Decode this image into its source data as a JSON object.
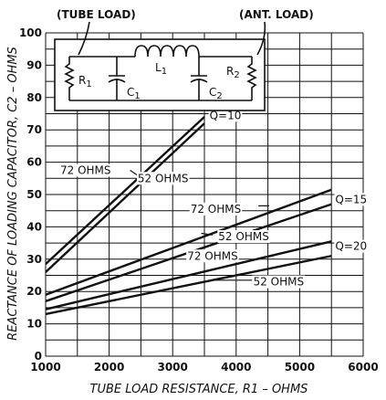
{
  "chart_data": {
    "type": "line",
    "xlabel": "TUBE LOAD RESISTANCE, R1 – OHMS",
    "ylabel": "REACTANCE OF LOADING CAPACITOR, C2 – OHMS",
    "xlim": [
      1000,
      6000
    ],
    "ylim": [
      0,
      100
    ],
    "xticks": [
      1000,
      2000,
      3000,
      4000,
      5000,
      6000
    ],
    "yticks": [
      0,
      10,
      20,
      30,
      40,
      50,
      60,
      70,
      80,
      90,
      100
    ],
    "grid": true,
    "series": [
      {
        "name": "72 OHMS",
        "x": [
          1000,
          3500
        ],
        "y": [
          28.5,
          74
        ]
      },
      {
        "name": "52 OHMS",
        "x": [
          1000,
          3500
        ],
        "y": [
          26,
          72
        ]
      },
      {
        "name": "72 OHMS",
        "x": [
          1000,
          5500
        ],
        "y": [
          19,
          51.5
        ]
      },
      {
        "name": "52 OHMS",
        "x": [
          1000,
          5500
        ],
        "y": [
          17,
          47
        ]
      },
      {
        "name": "72 OHMS",
        "x": [
          1000,
          5500
        ],
        "y": [
          14.5,
          35.5
        ]
      },
      {
        "name": "52 OHMS",
        "x": [
          1000,
          5500
        ],
        "y": [
          13,
          31
        ]
      }
    ],
    "annotations": [
      {
        "text": "Q=10",
        "x": 3580,
        "y": 74.5
      },
      {
        "text": "Q=15",
        "x": 5560,
        "y": 48.5
      },
      {
        "text": "Q=20",
        "x": 5560,
        "y": 34
      },
      {
        "text": "72 OHMS",
        "x": 1230,
        "y": 57.5
      },
      {
        "text": "52 OHMS",
        "x": 2450,
        "y": 55
      },
      {
        "text": "72 OHMS",
        "x": 3280,
        "y": 45.5
      },
      {
        "text": "52 OHMS",
        "x": 3720,
        "y": 37
      },
      {
        "text": "72 OHMS",
        "x": 3230,
        "y": 31
      },
      {
        "text": "52 OHMS",
        "x": 4270,
        "y": 23
      }
    ],
    "leaders": [
      {
        "from": [
          2480,
          55.5
        ],
        "to": [
          2330,
          57.5
        ]
      },
      {
        "from": [
          4350,
          46.5
        ],
        "to": [
          4520,
          46.5
        ]
      },
      {
        "from": [
          3630,
          37.5
        ],
        "to": [
          3450,
          38
        ]
      },
      {
        "from": [
          4430,
          30.5
        ],
        "to": [
          4580,
          31
        ]
      },
      {
        "from": [
          4250,
          23.5
        ],
        "to": [
          3600,
          23.5
        ]
      }
    ]
  },
  "schematic": {
    "tube_load_label": "(TUBE LOAD)",
    "ant_load_label": "(ANT. LOAD)",
    "r1": "R",
    "r1_sub": "1",
    "c1": "C",
    "c1_sub": "1",
    "l1": "L",
    "l1_sub": "1",
    "c2": "C",
    "c2_sub": "2",
    "r2": "R",
    "r2_sub": "2"
  }
}
